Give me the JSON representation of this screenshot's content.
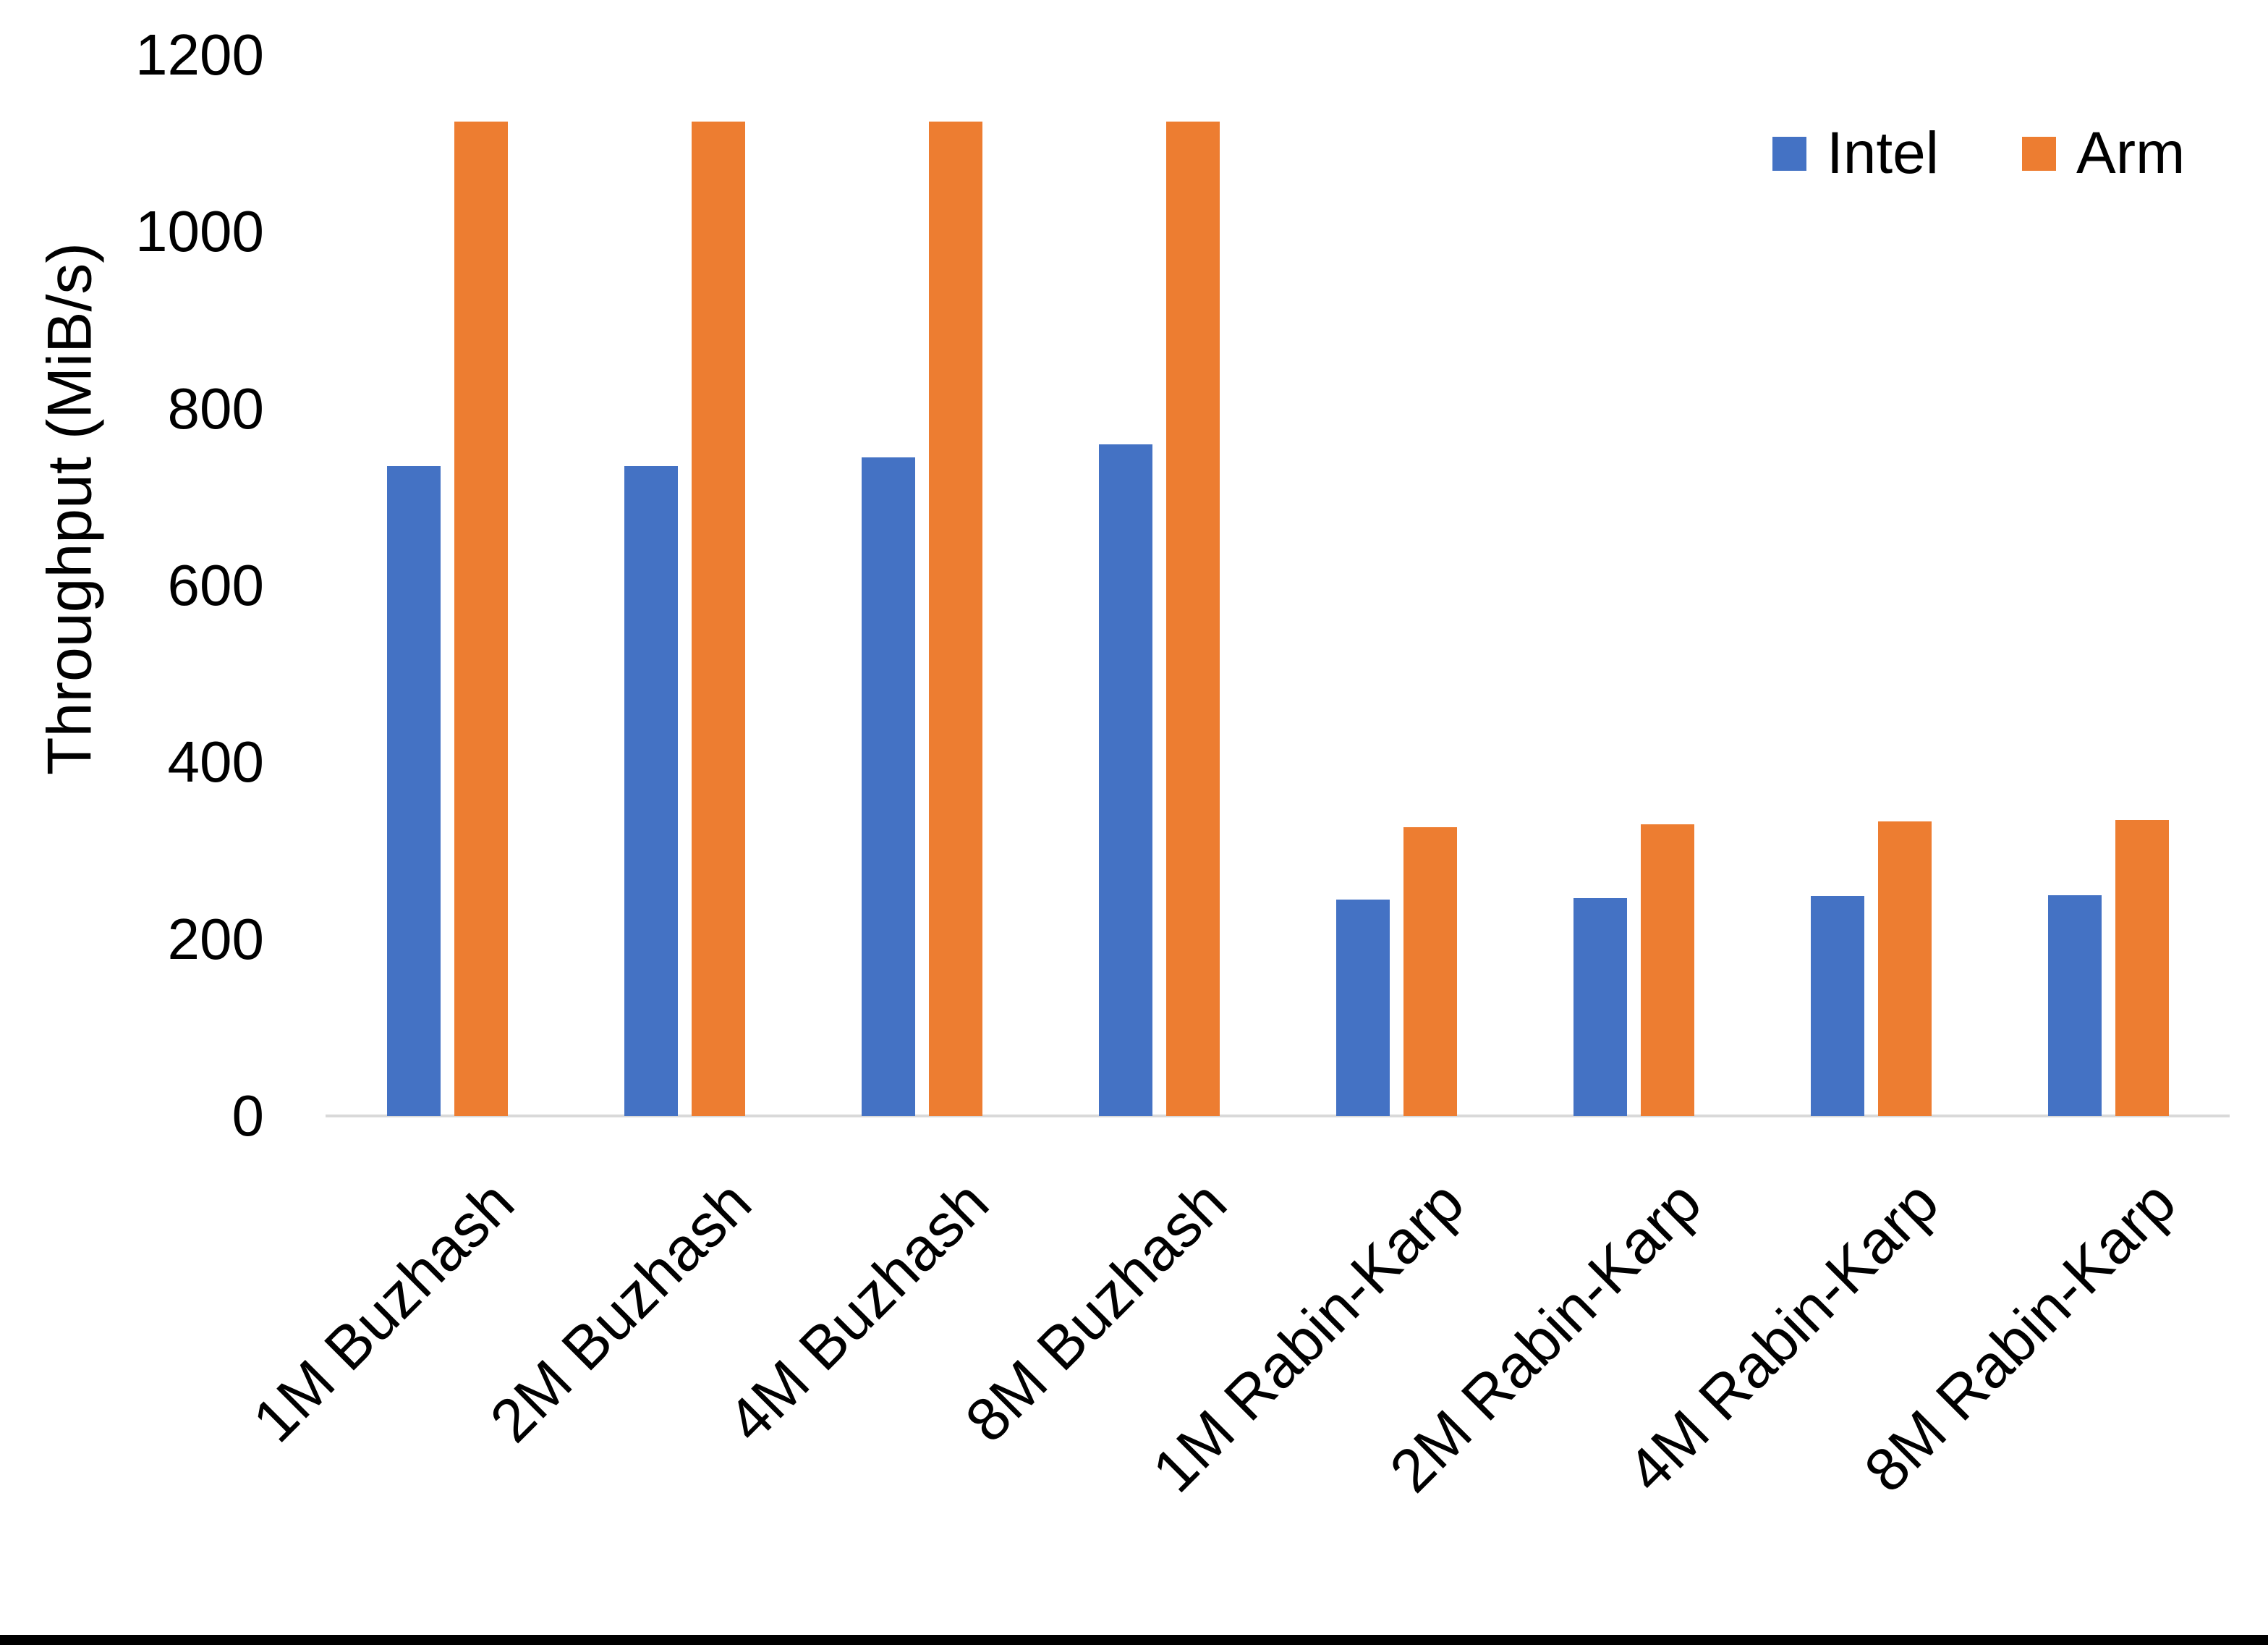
{
  "page": {
    "background": "#ffffff",
    "bottom_border_color": "#000000"
  },
  "chart_data": {
    "type": "bar",
    "title": "",
    "xlabel": "",
    "ylabel": "Throughput (MiB/s)",
    "ylim": [
      0,
      1200
    ],
    "yticks": [
      "0",
      "200",
      "400",
      "600",
      "800",
      "1000",
      "1200"
    ],
    "grid": false,
    "legend_position": "top-right",
    "axis_line_color": "#d9d9d9",
    "text_color": "#000000",
    "categories": [
      "1M Buzhash",
      "2M Buzhash",
      "4M Buzhash",
      "8M Buzhash",
      "1M Rabin-Karp",
      "2M Rabin-Karp",
      "4M Rabin-Karp",
      "8M Rabin-Karp"
    ],
    "series": [
      {
        "name": "Intel",
        "color": "#4472c4",
        "values": [
          735,
          735,
          745,
          760,
          245,
          246,
          249,
          250
        ]
      },
      {
        "name": "Arm",
        "color": "#ed7d31",
        "values": [
          1125,
          1125,
          1125,
          1125,
          327,
          330,
          333,
          335
        ]
      }
    ]
  }
}
